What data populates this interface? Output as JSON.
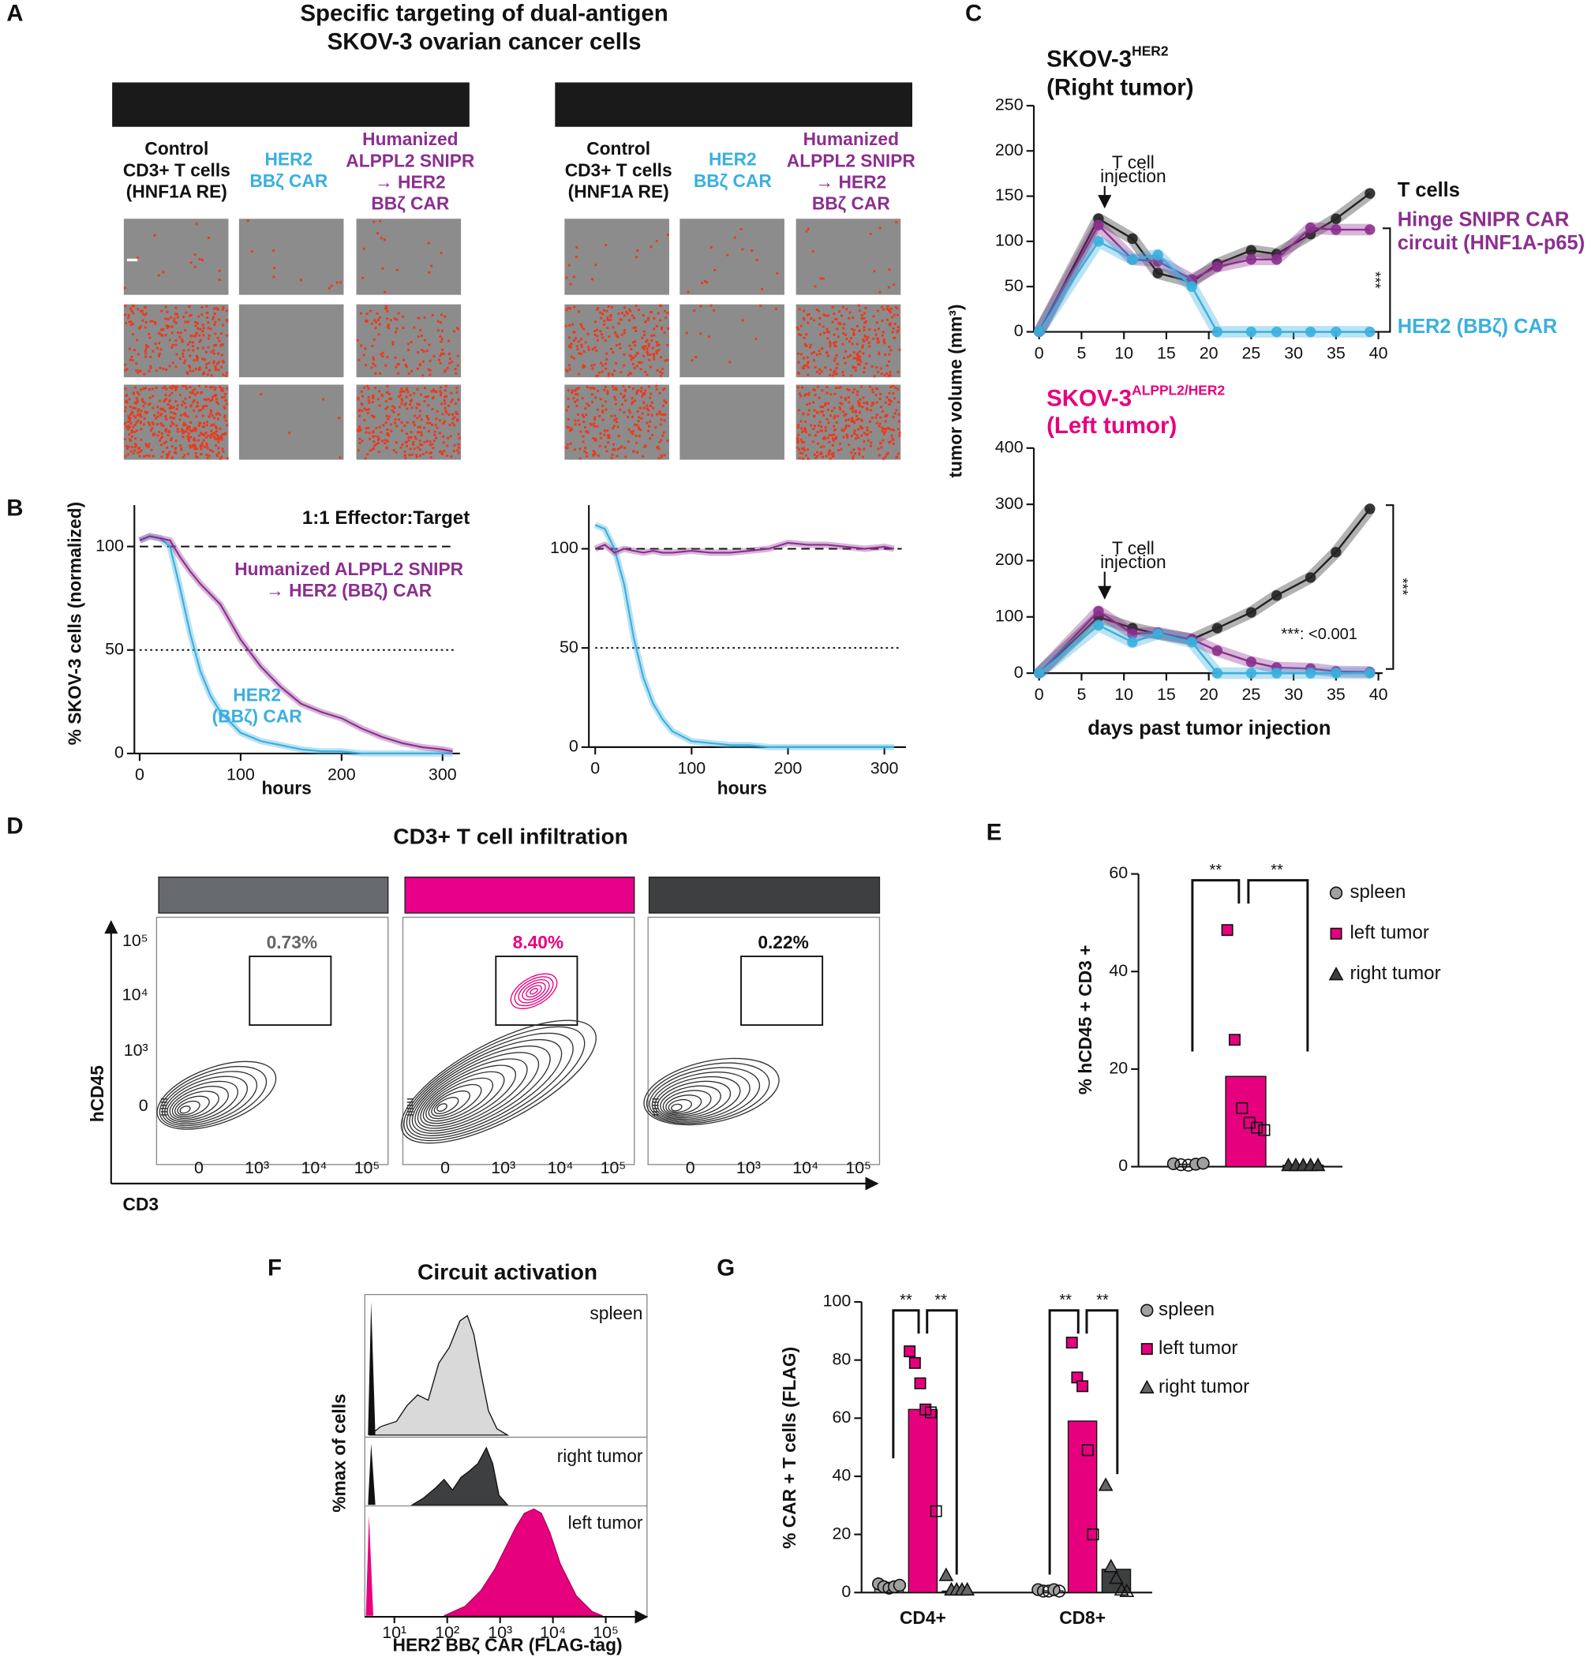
{
  "figure": {
    "panel_letters": [
      "A",
      "B",
      "C",
      "D",
      "E",
      "F",
      "G"
    ],
    "panel_a": {
      "title": [
        "Specific targeting of dual-antigen",
        "SKOV-3 ovarian cancer cells"
      ],
      "columns": [
        [
          "Control",
          "CD3+ T cells",
          "(HNF1A RE)"
        ],
        [
          "HER2",
          "BBζ CAR"
        ],
        [
          "Humanized",
          "ALPPL2 SNIPR",
          "→ HER2",
          "BBζ CAR"
        ]
      ]
    },
    "panel_d": {
      "title": "CD3+ T cell infiltration",
      "gates": [
        "0.73%",
        "8.40%",
        "0.22%"
      ],
      "yticks": [
        "10⁵",
        "10⁴",
        "10³",
        "0"
      ],
      "xticks": [
        "0",
        "10³",
        "10⁴",
        "10⁵"
      ],
      "ylabel": "hCD45",
      "xlabel": "CD3"
    },
    "panel_f": {
      "title": "Circuit activation",
      "samples": [
        "spleen",
        "right tumor",
        "left tumor"
      ],
      "xticks": [
        "10¹",
        "10²",
        "10³",
        "10⁴",
        "10⁵"
      ],
      "ylabel": "%max of cells",
      "xlabel": "HER2 BBζ CAR (FLAG-tag)"
    }
  },
  "chart_data": [
    {
      "type": "line",
      "title": "1:1 Effector:Target",
      "xlabel": "hours",
      "ylabel": "% SKOV-3 cells (normalized)",
      "x": [
        0,
        10,
        20,
        30,
        40,
        50,
        60,
        70,
        80,
        100,
        120,
        140,
        160,
        180,
        200,
        220,
        240,
        260,
        280,
        300,
        310
      ],
      "series": [
        {
          "name": [
            "HER2",
            "(BBζ) CAR"
          ],
          "color": "#3ab0de",
          "values": [
            103,
            105,
            104,
            100,
            80,
            58,
            40,
            28,
            20,
            10,
            6,
            4,
            2,
            1,
            1,
            0,
            0,
            0,
            0,
            0,
            0
          ]
        },
        {
          "name": [
            "Humanized ALPPL2 SNIPR",
            "→ HER2 (BBζ) CAR"
          ],
          "color": "#8b2f8f",
          "values": [
            103,
            105,
            104,
            103,
            95,
            88,
            82,
            77,
            72,
            55,
            42,
            32,
            24,
            20,
            17,
            12,
            8,
            5,
            3,
            2,
            1
          ]
        }
      ],
      "xlim": [
        0,
        313
      ],
      "ylim": [
        0,
        120
      ],
      "xticks": [
        0,
        100,
        200,
        300
      ],
      "yticks": [
        0,
        50,
        100
      ],
      "hlines": [
        {
          "value": 100,
          "style": "dashed"
        },
        {
          "value": 50,
          "style": "dotted"
        }
      ],
      "error_band": true,
      "markers": false,
      "grid": false
    },
    {
      "type": "line",
      "xlabel": "hours",
      "x": [
        0,
        10,
        20,
        30,
        40,
        50,
        60,
        70,
        80,
        100,
        120,
        140,
        160,
        180,
        200,
        220,
        240,
        260,
        280,
        300,
        310
      ],
      "series": [
        {
          "color": "#3ab0de",
          "values": [
            112,
            110,
            100,
            82,
            55,
            35,
            22,
            14,
            8,
            3,
            2,
            1,
            1,
            0,
            0,
            0,
            0,
            0,
            0,
            0,
            0
          ]
        },
        {
          "color": "#8b2f8f",
          "values": [
            100,
            102,
            98,
            100,
            99,
            98,
            99,
            98,
            98,
            99,
            98,
            98,
            99,
            100,
            103,
            102,
            102,
            101,
            100,
            101,
            100
          ]
        }
      ],
      "xlim": [
        0,
        318
      ],
      "ylim": [
        0,
        122
      ],
      "xticks": [
        0,
        100,
        200,
        300
      ],
      "yticks": [
        0,
        50,
        100
      ],
      "hlines": [
        {
          "value": 100,
          "style": "dashed"
        },
        {
          "value": 50,
          "style": "dotted"
        }
      ],
      "error_band": true,
      "markers": false,
      "grid": false
    },
    {
      "type": "line",
      "title": {
        "text": "SKOV-3",
        "sup": "HER2",
        "line2": "(Right tumor)"
      },
      "ylabel": "tumor volume (mm³)",
      "annotations": [
        "T cell",
        "injection",
        "***"
      ],
      "x": [
        0,
        7,
        11,
        14,
        18,
        21,
        25,
        28,
        32,
        35,
        39
      ],
      "series": [
        {
          "name": "T cells",
          "color": "#222222",
          "values": [
            0,
            125,
            103,
            65,
            55,
            75,
            90,
            86,
            108,
            125,
            153
          ]
        },
        {
          "name": [
            "Hinge SNIPR CAR",
            "circuit (HNF1A-p65)"
          ],
          "color": "#8b2f8f",
          "values": [
            0,
            118,
            80,
            78,
            58,
            72,
            80,
            80,
            115,
            113,
            113
          ]
        },
        {
          "name": "HER2 (BBζ) CAR",
          "color": "#3ab0de",
          "values": [
            0,
            100,
            80,
            85,
            50,
            0,
            0,
            0,
            0,
            0,
            0
          ]
        }
      ],
      "xlim": [
        0,
        40
      ],
      "ylim": [
        0,
        250
      ],
      "xticks": [
        0,
        5,
        10,
        15,
        20,
        25,
        30,
        35,
        40
      ],
      "yticks": [
        0,
        50,
        100,
        150,
        200,
        250
      ],
      "error_band": true,
      "markers": true,
      "grid": false
    },
    {
      "type": "line",
      "title": {
        "text": "SKOV-3",
        "sup": "ALPPL2/HER2",
        "line2": "(Left tumor)"
      },
      "xlabel": "days past tumor injection",
      "annotations": [
        "T cell",
        "injection",
        "***: <0.001",
        "***"
      ],
      "x": [
        0,
        7,
        11,
        14,
        18,
        21,
        25,
        28,
        32,
        35,
        39
      ],
      "series": [
        {
          "color": "#222222",
          "values": [
            0,
            100,
            80,
            70,
            60,
            80,
            108,
            138,
            170,
            215,
            292
          ]
        },
        {
          "color": "#8b2f8f",
          "values": [
            0,
            110,
            70,
            72,
            60,
            40,
            20,
            10,
            8,
            3,
            2
          ]
        },
        {
          "color": "#3ab0de",
          "values": [
            0,
            85,
            55,
            70,
            55,
            0,
            0,
            0,
            0,
            0,
            0
          ]
        }
      ],
      "xlim": [
        0,
        40
      ],
      "ylim": [
        0,
        400
      ],
      "xticks": [
        0,
        5,
        10,
        15,
        20,
        25,
        30,
        35,
        40
      ],
      "yticks": [
        0,
        100,
        200,
        300,
        400
      ],
      "error_band": true,
      "markers": true,
      "grid": false
    },
    {
      "type": "bar_dot",
      "ylabel": "% hCD45 + CD3 +",
      "categories": [
        "spleen",
        "left tumor",
        "right tumor"
      ],
      "values": [
        0.5,
        18.5,
        0.3
      ],
      "points": [
        [
          0.6,
          0.4,
          0.3,
          0.5,
          0.7
        ],
        [
          48.5,
          26,
          12,
          9,
          8,
          7.5
        ],
        [
          0.3,
          0.3,
          0.3,
          0.3,
          0.3
        ]
      ],
      "colors": [
        "#a0a0a0",
        "#e6007e",
        "#3d3f40"
      ],
      "markers": [
        "circle",
        "square",
        "triangle"
      ],
      "ylim": [
        0,
        60
      ],
      "yticks": [
        0,
        20,
        40,
        60
      ],
      "annotations": [
        "**",
        "**"
      ],
      "legend": "right",
      "grid": false
    },
    {
      "type": "grouped_bar_dot",
      "ylabel": "% CAR + T cells (FLAG)",
      "categories": [
        "CD4+",
        "CD8+"
      ],
      "series": [
        {
          "name": "spleen",
          "color": "#a0a0a0",
          "marker": "circle",
          "values": [
            2,
            0.6
          ],
          "points": [
            [
              3,
              2,
              1.5,
              2,
              2.5
            ],
            [
              1,
              0.5,
              0.5,
              1,
              0.5
            ]
          ]
        },
        {
          "name": "left tumor",
          "color": "#e6007e",
          "marker": "square",
          "values": [
            63,
            59
          ],
          "points": [
            [
              83,
              79,
              72,
              63,
              62,
              28
            ],
            [
              86,
              74,
              71,
              49,
              20
            ]
          ]
        },
        {
          "name": "right tumor",
          "color": "#3d3f40",
          "marker": "triangle",
          "values": [
            0.5,
            8
          ],
          "points": [
            [
              6,
              1,
              1,
              1,
              1
            ],
            [
              37,
              9,
              5,
              1,
              0.5
            ]
          ]
        }
      ],
      "ylim": [
        0,
        100
      ],
      "yticks": [
        0,
        20,
        40,
        60,
        80,
        100
      ],
      "annotations": [
        "**",
        "**",
        "**",
        "**"
      ],
      "legend": "right",
      "grid": false
    }
  ]
}
